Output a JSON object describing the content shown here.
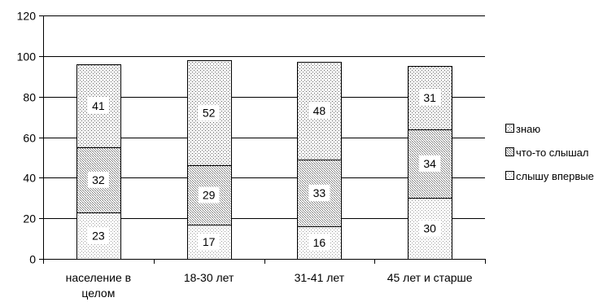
{
  "chart_data": {
    "type": "bar",
    "stacked": true,
    "categories": [
      "население в целом",
      "18-30 лет",
      "31-41 лет",
      "45 лет и старше"
    ],
    "category_lines": [
      [
        "население в",
        "целом"
      ],
      [
        "18-30 лет"
      ],
      [
        "31-41 лет"
      ],
      [
        "45 лет и старше"
      ]
    ],
    "series": [
      {
        "name": "слышу впервые",
        "values": [
          23,
          17,
          16,
          30
        ]
      },
      {
        "name": "что-то слышал",
        "values": [
          32,
          29,
          33,
          34
        ]
      },
      {
        "name": "знаю",
        "values": [
          41,
          52,
          48,
          31
        ]
      }
    ],
    "legend_order": [
      "знаю",
      "что-то слышал",
      "слышу впервые"
    ],
    "ylim": [
      0,
      120
    ],
    "yticks": [
      0,
      20,
      40,
      60,
      80,
      100,
      120
    ],
    "title": "",
    "xlabel": "",
    "ylabel": "",
    "grid": "horizontal",
    "legend_position": "right"
  }
}
